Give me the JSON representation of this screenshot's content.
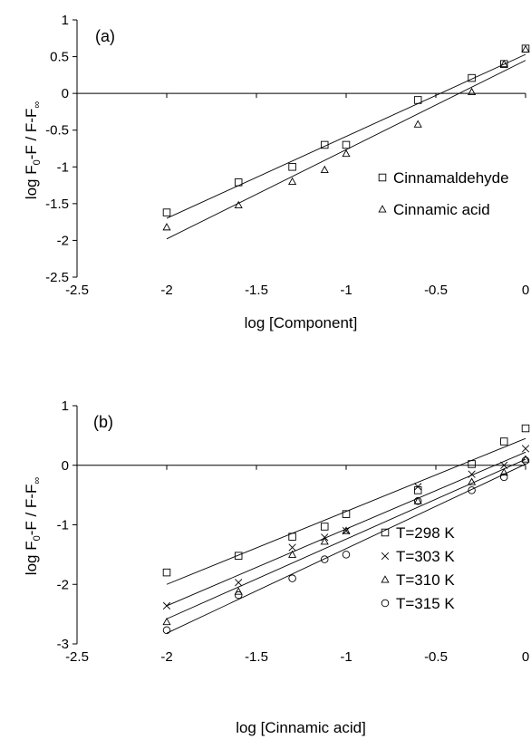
{
  "chart_data": [
    {
      "type": "scatter",
      "panel_label": "(a)",
      "xlabel": "log [Component]",
      "ylabel": "log F0-F / F-F∞",
      "xlim": [
        -2.5,
        0
      ],
      "ylim": [
        -2.5,
        1
      ],
      "xticks": [
        "-2.5",
        "-2",
        "-1.5",
        "-1",
        "-0.5",
        "0"
      ],
      "yticks": [
        "1",
        "0.5",
        "0",
        "-0.5",
        "-1",
        "-1.5",
        "-2",
        "-2.5"
      ],
      "xtick_values": [
        -2.5,
        -2,
        -1.5,
        -1,
        -0.5,
        0
      ],
      "ytick_values": [
        1,
        0.5,
        0,
        -0.5,
        -1,
        -1.5,
        -2,
        -2.5
      ],
      "grid": false,
      "legend_position": "right",
      "series": [
        {
          "name": "Cinnamaldehyde",
          "marker": "square",
          "x": [
            -2,
            -1.6,
            -1.3,
            -1.12,
            -1,
            -0.6,
            -0.3,
            -0.12,
            0
          ],
          "y": [
            -1.62,
            -1.21,
            -1.0,
            -0.7,
            -0.7,
            -0.09,
            0.21,
            0.4,
            0.61
          ],
          "fit": [
            [
              -2,
              -1.7
            ],
            [
              0,
              0.53
            ]
          ]
        },
        {
          "name": "Cinnamic acid",
          "marker": "triangle",
          "x": [
            -2,
            -1.6,
            -1.3,
            -1.12,
            -1,
            -0.6,
            -0.3,
            -0.12,
            0
          ],
          "y": [
            -1.82,
            -1.52,
            -1.2,
            -1.04,
            -0.82,
            -0.42,
            0.02,
            0.4,
            0.6
          ],
          "fit": [
            [
              -2,
              -1.98
            ],
            [
              0,
              0.45
            ]
          ]
        }
      ]
    },
    {
      "type": "scatter",
      "panel_label": "(b)",
      "xlabel": "log [Cinnamic acid]",
      "ylabel": "log F0-F / F-F∞",
      "xlim": [
        -2.5,
        0
      ],
      "ylim": [
        -3,
        1
      ],
      "xticks": [
        "-2.5",
        "-2",
        "-1.5",
        "-1",
        "-0.5",
        "0"
      ],
      "yticks": [
        "1",
        "0",
        "-1",
        "-2",
        "-3"
      ],
      "xtick_values": [
        -2.5,
        -2,
        -1.5,
        -1,
        -0.5,
        0
      ],
      "ytick_values": [
        1,
        0,
        -1,
        -2,
        -3
      ],
      "grid": false,
      "legend_position": "right",
      "series": [
        {
          "name": "T=298 K",
          "marker": "square",
          "x": [
            -2,
            -1.6,
            -1.3,
            -1.12,
            -1,
            -0.6,
            -0.3,
            -0.12,
            0
          ],
          "y": [
            -1.8,
            -1.52,
            -1.2,
            -1.03,
            -0.82,
            -0.42,
            0.02,
            0.4,
            0.62
          ],
          "fit": [
            [
              -2,
              -2.0
            ],
            [
              0,
              0.45
            ]
          ]
        },
        {
          "name": "T=303 K",
          "marker": "x",
          "x": [
            -2,
            -1.6,
            -1.3,
            -1.12,
            -1,
            -0.6,
            -0.3,
            -0.12,
            0
          ],
          "y": [
            -2.36,
            -1.97,
            -1.38,
            -1.21,
            -1.1,
            -0.36,
            -0.15,
            0.0,
            0.28
          ],
          "fit": [
            [
              -2,
              -2.36
            ],
            [
              0,
              0.22
            ]
          ]
        },
        {
          "name": "T=310 K",
          "marker": "triangle",
          "x": [
            -2,
            -1.6,
            -1.3,
            -1.12,
            -1,
            -0.6,
            -0.3,
            -0.12,
            0
          ],
          "y": [
            -2.63,
            -2.12,
            -1.5,
            -1.28,
            -1.1,
            -0.6,
            -0.28,
            -0.12,
            0.1
          ],
          "fit": [
            [
              -2,
              -2.58
            ],
            [
              0,
              0.1
            ]
          ]
        },
        {
          "name": "T=315 K",
          "marker": "circle",
          "x": [
            -2,
            -1.6,
            -1.3,
            -1.12,
            -1,
            -0.6,
            -0.3,
            -0.12,
            0
          ],
          "y": [
            -2.77,
            -2.18,
            -1.9,
            -1.58,
            -1.5,
            -0.6,
            -0.42,
            -0.2,
            0.08
          ],
          "fit": [
            [
              -2,
              -2.82
            ],
            [
              0,
              0.02
            ]
          ]
        }
      ]
    }
  ]
}
